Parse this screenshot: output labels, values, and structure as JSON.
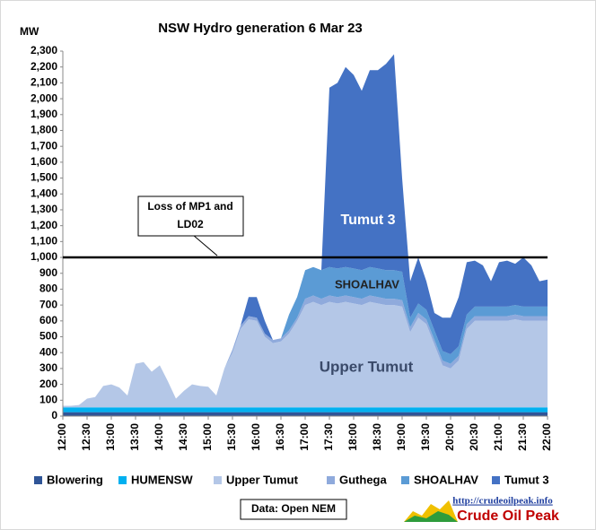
{
  "chart_data": {
    "type": "stacked_area",
    "title": "NSW Hydro generation 6 Mar 23",
    "y_label": "MW",
    "categories": [
      "12:00",
      null,
      null,
      "12:30",
      null,
      null,
      "13:00",
      null,
      null,
      "13:30",
      null,
      null,
      "14:00",
      null,
      null,
      "14:30",
      null,
      null,
      "15:00",
      null,
      null,
      "15:30",
      null,
      null,
      "16:00",
      null,
      null,
      "16:30",
      null,
      null,
      "17:00",
      null,
      null,
      "17:30",
      null,
      null,
      "18:00",
      null,
      null,
      "18:30",
      null,
      null,
      "19:00",
      null,
      null,
      "19:30",
      null,
      null,
      "20:00",
      null,
      null,
      "20:30",
      null,
      null,
      "21:00",
      null,
      null,
      "21:30",
      null,
      null,
      "22:00"
    ],
    "series": [
      {
        "name": "Blowering",
        "color": "#2f5597",
        "values": [
          25,
          25,
          25,
          25,
          25,
          25,
          25,
          25,
          25,
          25,
          25,
          25,
          25,
          25,
          25,
          25,
          25,
          25,
          25,
          25,
          25,
          25,
          25,
          25,
          25,
          25,
          25,
          25,
          25,
          25,
          25,
          25,
          25,
          25,
          25,
          25,
          25,
          25,
          25,
          25,
          25,
          25,
          25,
          25,
          25,
          25,
          25,
          25,
          25,
          25,
          25,
          25,
          25,
          25,
          25,
          25,
          25,
          25,
          25,
          25,
          25
        ]
      },
      {
        "name": "HUMENSW",
        "color": "#00b0f0",
        "values": [
          30,
          30,
          30,
          30,
          30,
          30,
          30,
          30,
          30,
          30,
          30,
          30,
          30,
          30,
          30,
          30,
          30,
          30,
          30,
          30,
          30,
          30,
          30,
          30,
          30,
          30,
          30,
          30,
          30,
          30,
          30,
          30,
          30,
          30,
          30,
          30,
          30,
          30,
          30,
          30,
          30,
          30,
          30,
          30,
          30,
          30,
          30,
          30,
          30,
          30,
          30,
          30,
          30,
          30,
          30,
          30,
          30,
          30,
          30,
          30,
          30
        ]
      },
      {
        "name": "Upper Tumut",
        "color": "#b4c7e7",
        "values": [
          10,
          10,
          15,
          55,
          65,
          135,
          145,
          125,
          75,
          275,
          285,
          225,
          265,
          165,
          55,
          105,
          145,
          135,
          130,
          75,
          245,
          345,
          495,
          555,
          545,
          445,
          405,
          415,
          465,
          545,
          645,
          665,
          645,
          665,
          655,
          665,
          655,
          645,
          665,
          655,
          645,
          645,
          635,
          475,
          565,
          525,
          395,
          265,
          245,
          295,
          495,
          545,
          545,
          545,
          545,
          545,
          555,
          545,
          545,
          545,
          545
        ]
      },
      {
        "name": "Guthega",
        "color": "#8faadc",
        "values": [
          0,
          0,
          0,
          0,
          0,
          0,
          0,
          0,
          0,
          0,
          0,
          0,
          0,
          0,
          0,
          0,
          0,
          0,
          0,
          0,
          0,
          20,
          20,
          20,
          20,
          20,
          20,
          20,
          20,
          20,
          40,
          40,
          40,
          40,
          40,
          40,
          40,
          40,
          40,
          40,
          40,
          40,
          40,
          30,
          30,
          30,
          30,
          30,
          30,
          30,
          30,
          30,
          30,
          30,
          30,
          30,
          30,
          30,
          30,
          30,
          30
        ]
      },
      {
        "name": "SHOALHAV",
        "color": "#5b9bd5",
        "values": [
          0,
          0,
          0,
          0,
          0,
          0,
          0,
          0,
          0,
          0,
          0,
          0,
          0,
          0,
          0,
          0,
          0,
          0,
          0,
          0,
          0,
          0,
          0,
          0,
          0,
          0,
          0,
          0,
          100,
          130,
          180,
          180,
          180,
          180,
          180,
          180,
          180,
          180,
          180,
          180,
          180,
          180,
          180,
          60,
          60,
          60,
          60,
          60,
          60,
          60,
          60,
          60,
          60,
          60,
          60,
          60,
          60,
          60,
          60,
          60,
          60
        ]
      },
      {
        "name": "Tumut 3",
        "color": "#4472c4",
        "values": [
          0,
          0,
          0,
          0,
          0,
          0,
          0,
          0,
          0,
          0,
          0,
          0,
          0,
          0,
          0,
          0,
          0,
          0,
          0,
          0,
          0,
          0,
          0,
          120,
          130,
          80,
          0,
          0,
          0,
          0,
          0,
          0,
          0,
          1130,
          1170,
          1260,
          1220,
          1130,
          1240,
          1250,
          1300,
          1360,
          590,
          230,
          290,
          180,
          110,
          210,
          230,
          310,
          330,
          290,
          260,
          160,
          280,
          290,
          260,
          310,
          260,
          160,
          170
        ]
      }
    ],
    "ylim": [
      0,
      2300
    ],
    "yticks": [
      0,
      100,
      200,
      300,
      400,
      500,
      600,
      700,
      800,
      900,
      {
        "value": 1000,
        "label": "1,000"
      },
      {
        "value": 1100,
        "label": "1,100"
      },
      {
        "value": 1200,
        "label": "1,200"
      },
      {
        "value": 1300,
        "label": "1,300"
      },
      {
        "value": 1400,
        "label": "1,400"
      },
      {
        "value": 1500,
        "label": "1,500"
      },
      {
        "value": 1600,
        "label": "1,600"
      },
      {
        "value": 1700,
        "label": "1,700"
      },
      {
        "value": 1800,
        "label": "1,800"
      },
      {
        "value": 1900,
        "label": "1,900"
      },
      {
        "value": 2000,
        "label": "2,000"
      },
      {
        "value": 2100,
        "label": "2,100"
      },
      {
        "value": 2200,
        "label": "2,200"
      },
      {
        "value": 2300,
        "label": "2,300"
      }
    ],
    "reference_line": 1000,
    "annotations": [
      "Loss of MP1 and LD02",
      "Tumut 3",
      "SHOALHAV",
      "Upper Tumut"
    ],
    "legend": "bottom",
    "source": "Data: Open NEM",
    "logo_url": "http://crudeoilpeak.info",
    "logo_text": "Crude Oil Peak"
  }
}
